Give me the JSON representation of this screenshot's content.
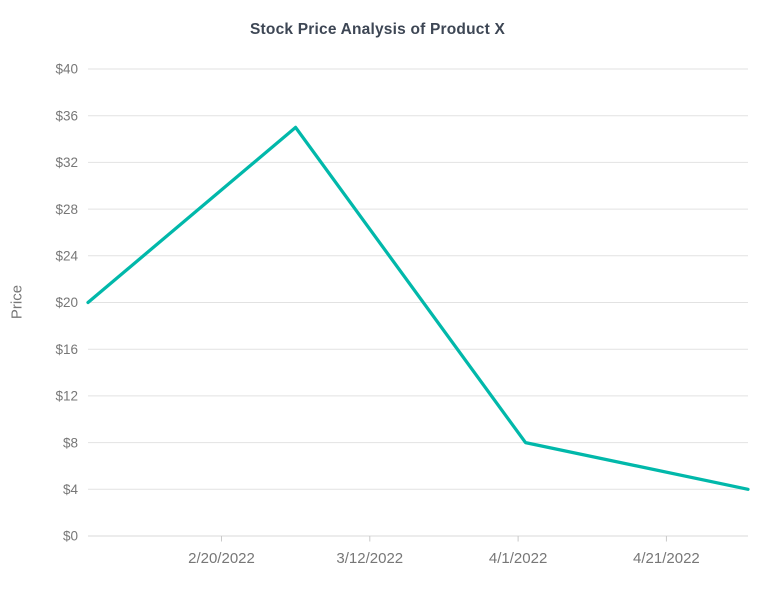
{
  "chart": {
    "title": "Stock Price Analysis of Product X",
    "y_axis_title": "Price"
  },
  "chart_data": {
    "type": "line",
    "title": "Stock Price Analysis of Product X",
    "xlabel": "",
    "ylabel": "Price",
    "x": [
      "2/2/2022",
      "3/2/2022",
      "4/2/2022",
      "5/2/2022"
    ],
    "values": [
      20,
      35,
      8,
      4
    ],
    "xlim": [
      "2/2/2022",
      "5/2/2022"
    ],
    "ylim": [
      0,
      40
    ],
    "x_tick_labels": [
      "2/20/2022",
      "3/12/2022",
      "4/1/2022",
      "4/21/2022"
    ],
    "y_ticks": [
      0,
      4,
      8,
      12,
      16,
      20,
      24,
      28,
      32,
      36,
      40
    ],
    "y_tick_prefix": "$",
    "grid": "horizontal",
    "legend": "none",
    "colors": {
      "line": "#01B8AA",
      "gridline": "#e2e2e2",
      "axis_line": "#d9d9d9",
      "tick_mark": "#c9c9c9",
      "axis_label": "#777777",
      "title": "#3d4654"
    }
  }
}
